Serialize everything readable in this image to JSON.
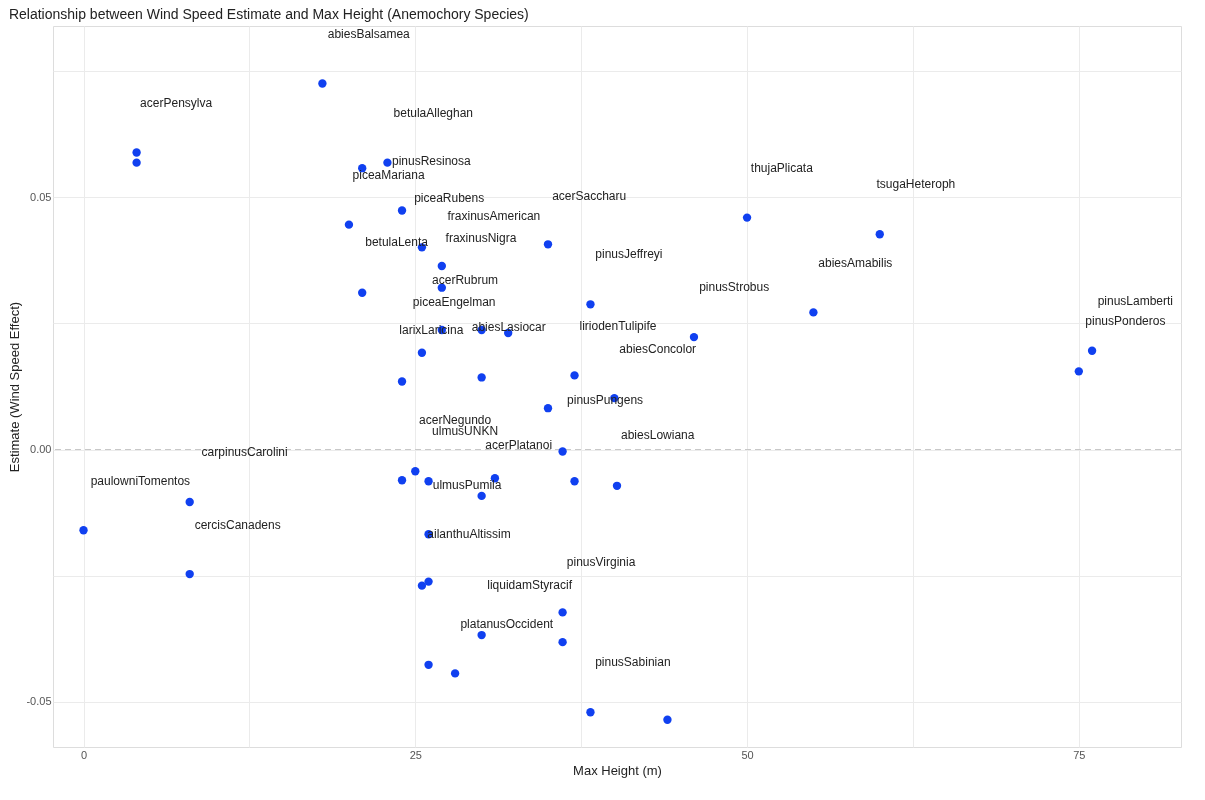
{
  "chart_data": {
    "type": "scatter",
    "title": "Relationship between Wind Speed Estimate and Max Height (Anemochory Species)",
    "xlabel": "Max Height (m)",
    "ylabel": "Estimate (Wind Speed Effect)",
    "x": [
      18.0,
      4,
      4,
      21,
      22.9,
      24,
      20,
      25.5,
      27,
      27,
      21,
      35,
      50,
      60,
      55,
      38.2,
      46,
      76,
      75,
      27,
      30,
      32,
      25.5,
      24,
      30,
      37,
      40,
      35,
      36.1,
      25,
      24,
      26,
      31,
      37,
      40.2,
      30,
      8,
      0,
      26,
      8,
      25.5,
      26,
      36.1,
      30,
      36.1,
      26,
      28,
      38.2,
      44
    ],
    "series": [
      {
        "color": "#1040f0",
        "values": [
          0.0726,
          0.0589,
          0.0569,
          0.0558,
          0.0569,
          0.0474,
          0.0446,
          0.0401,
          0.0364,
          0.0321,
          0.0311,
          0.0407,
          0.046,
          0.0427,
          0.0272,
          0.0288,
          0.0223,
          0.0196,
          0.0155,
          0.0237,
          0.0237,
          0.0231,
          0.0192,
          0.0135,
          0.0143,
          0.0147,
          0.0102,
          0.0082,
          -0.0004,
          -0.0043,
          -0.0061,
          -0.0063,
          -0.0057,
          -0.0063,
          -0.0072,
          -0.0092,
          -0.0104,
          -0.016,
          -0.0168,
          -0.0247,
          -0.027,
          -0.0262,
          -0.0323,
          -0.0368,
          -0.0382,
          -0.0427,
          -0.0444,
          -0.0521,
          -0.0536
        ]
      }
    ],
    "xlim": [
      -2.3,
      82.7
    ],
    "ylim": [
      -0.059,
      0.084
    ],
    "xticks": [
      0,
      {
        "value": 12.5,
        "label": null
      },
      25,
      {
        "value": 37.5,
        "label": null
      },
      50,
      {
        "value": 62.5,
        "label": null
      },
      75
    ],
    "yticks": [
      {
        "value": -0.05,
        "label": "-0.05"
      },
      {
        "value": -0.025,
        "label": null
      },
      {
        "value": 0,
        "label": "0.00"
      },
      {
        "value": 0.025,
        "label": null
      },
      {
        "value": 0.05,
        "label": "0.05"
      },
      {
        "value": 0.075,
        "label": null
      }
    ],
    "grid": true,
    "marker": "circle",
    "ref_lines": [
      {
        "axis": "y",
        "value": 0,
        "color": "#c8c8c8",
        "line_style": "dashed"
      }
    ],
    "annotations": [
      "abiesBalsamea",
      "acerPensylva",
      "betulaAlleghan",
      "pinusResinosa",
      "piceaMariana",
      "piceaRubens",
      "acerSaccharu",
      "thujaPlicata",
      "tsugaHeteroph",
      "fraxinusAmerican",
      "betulaLenta",
      "fraxinusNigra",
      "pinusJeffreyi",
      "abiesAmabilis",
      "acerRubrum",
      "pinusStrobus",
      "pinusLamberti",
      "piceaEngelman",
      "larixLaricina",
      "abiesLasiocar",
      "liriodenTulipife",
      "pinusPonderos",
      "abiesConcolor",
      "pinusPungens",
      "acerNegundo",
      "ulmusUNKN",
      "acerPlatanoi",
      "abiesLowiana",
      "carpinusCarolini",
      "paulowniTomentos",
      "ulmusPumila",
      "cercisCanadens",
      "ailanthuAltissim",
      "pinusVirginia",
      "liquidamStyracif",
      "platanusOccident",
      "pinusSabinian"
    ]
  }
}
